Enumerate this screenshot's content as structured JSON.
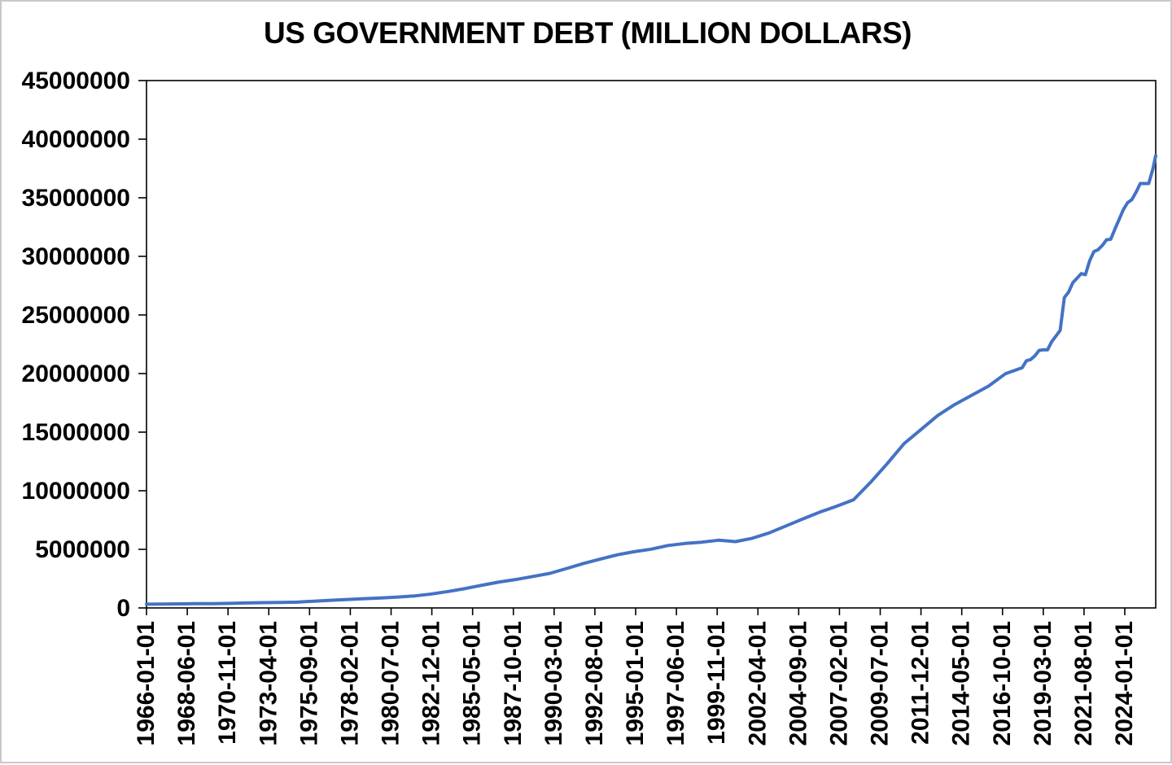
{
  "page": {
    "background_color": "#ffffff",
    "frame_border_color": "#c9c9c9"
  },
  "chart_data": {
    "type": "line",
    "title": "US GOVERNMENT DEBT (MILLION DOLLARS)",
    "xlabel": "",
    "ylabel": "",
    "ylim": [
      0,
      45000000
    ],
    "grid": "off",
    "legend": "none",
    "line_color": "#4472C4",
    "axis_color": "#000000",
    "text_color": "#000000",
    "y_ticks": [
      0,
      5000000,
      10000000,
      15000000,
      20000000,
      25000000,
      30000000,
      35000000,
      40000000,
      45000000
    ],
    "x_tick_labels": [
      "1966-01-01",
      "1968-06-01",
      "1970-11-01",
      "1973-04-01",
      "1975-09-01",
      "1978-02-01",
      "1980-07-01",
      "1982-12-01",
      "1985-05-01",
      "1987-10-01",
      "1990-03-01",
      "1992-08-01",
      "1995-01-01",
      "1997-06-01",
      "1999-11-01",
      "2002-04-01",
      "2004-09-01",
      "2007-02-01",
      "2009-07-01",
      "2011-12-01",
      "2014-05-01",
      "2016-10-01",
      "2019-03-01",
      "2021-08-01",
      "2024-01-01"
    ],
    "x_tick_interval_months": 29,
    "series": [
      {
        "name": "US Government Debt (million dollars)",
        "color": "#4472C4",
        "points": [
          [
            "1966-01",
            320999
          ],
          [
            "1966-12",
            329319
          ],
          [
            "1967-12",
            344663
          ],
          [
            "1968-12",
            358029
          ],
          [
            "1969-12",
            368226
          ],
          [
            "1970-12",
            389158
          ],
          [
            "1971-12",
            424131
          ],
          [
            "1972-12",
            449298
          ],
          [
            "1973-12",
            469898
          ],
          [
            "1974-12",
            492665
          ],
          [
            "1975-12",
            576649
          ],
          [
            "1976-12",
            653544
          ],
          [
            "1977-12",
            718943
          ],
          [
            "1978-12",
            789207
          ],
          [
            "1979-12",
            845120
          ],
          [
            "1980-12",
            930210
          ],
          [
            "1981-12",
            1028729
          ],
          [
            "1982-12",
            1197073
          ],
          [
            "1983-12",
            1410702
          ],
          [
            "1984-12",
            1662966
          ],
          [
            "1985-12",
            1945941
          ],
          [
            "1986-12",
            2214835
          ],
          [
            "1987-12",
            2431715
          ],
          [
            "1988-12",
            2684392
          ],
          [
            "1989-12",
            2953017
          ],
          [
            "1990-12",
            3364820
          ],
          [
            "1991-12",
            3801698
          ],
          [
            "1992-12",
            4177009
          ],
          [
            "1993-12",
            4535687
          ],
          [
            "1994-12",
            4800149
          ],
          [
            "1995-12",
            5017041
          ],
          [
            "1996-12",
            5323172
          ],
          [
            "1997-12",
            5502388
          ],
          [
            "1998-12",
            5614217
          ],
          [
            "1999-12",
            5776091
          ],
          [
            "2000-12",
            5662216
          ],
          [
            "2001-12",
            5943439
          ],
          [
            "2002-12",
            6405707
          ],
          [
            "2003-12",
            7001312
          ],
          [
            "2004-12",
            7596143
          ],
          [
            "2005-12",
            8170424
          ],
          [
            "2006-12",
            8680224
          ],
          [
            "2007-12",
            9229172
          ],
          [
            "2008-12",
            10699805
          ],
          [
            "2009-12",
            12311349
          ],
          [
            "2010-12",
            14025215
          ],
          [
            "2011-12",
            15222940
          ],
          [
            "2012-12",
            16432730
          ],
          [
            "2013-12",
            17351971
          ],
          [
            "2014-12",
            18141444
          ],
          [
            "2015-12",
            18922179
          ],
          [
            "2016-12",
            19976827
          ],
          [
            "2017-12",
            20492747
          ],
          [
            "2018-03",
            21089864
          ],
          [
            "2018-06",
            21195070
          ],
          [
            "2018-09",
            21516058
          ],
          [
            "2018-12",
            21974096
          ],
          [
            "2019-03",
            22028026
          ],
          [
            "2019-06",
            22023544
          ],
          [
            "2019-09",
            22719402
          ],
          [
            "2019-12",
            23201380
          ],
          [
            "2020-03",
            23686825
          ],
          [
            "2020-06",
            26477912
          ],
          [
            "2020-09",
            26945391
          ],
          [
            "2020-12",
            27747798
          ],
          [
            "2021-03",
            28132570
          ],
          [
            "2021-06",
            28529436
          ],
          [
            "2021-09",
            28428919
          ],
          [
            "2021-12",
            29617215
          ],
          [
            "2022-03",
            30400667
          ],
          [
            "2022-06",
            30568582
          ],
          [
            "2022-09",
            30928912
          ],
          [
            "2022-12",
            31419689
          ],
          [
            "2023-03",
            31458438
          ],
          [
            "2023-06",
            32332274
          ],
          [
            "2023-09",
            33167334
          ],
          [
            "2023-12",
            34001494
          ],
          [
            "2024-03",
            34586537
          ],
          [
            "2024-06",
            34831955
          ],
          [
            "2024-09",
            35464674
          ],
          [
            "2024-12",
            36218605
          ],
          [
            "2025-03",
            36213557
          ],
          [
            "2025-06",
            36214270
          ],
          [
            "2025-09",
            37450000
          ],
          [
            "2025-11",
            38600000
          ]
        ]
      }
    ]
  }
}
